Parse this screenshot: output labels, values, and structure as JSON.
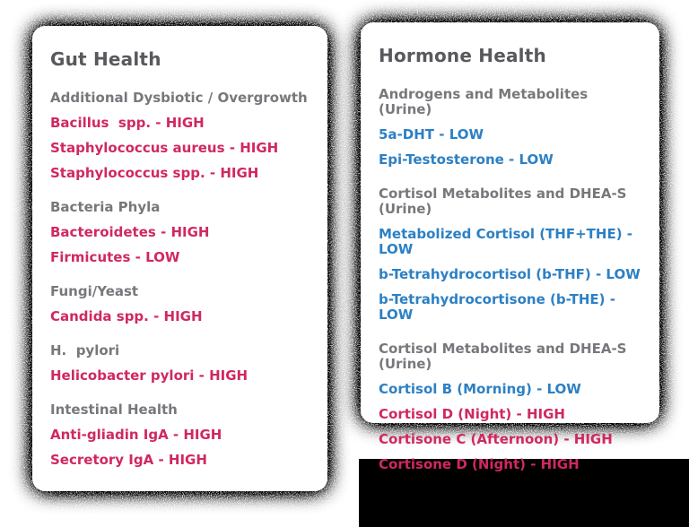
{
  "colors": {
    "result_high_red": "#d02862",
    "result_low_blue": "#2d80c4",
    "card_title": "#58595d",
    "section_header": "#77787c",
    "card_background": "#ffffff",
    "page_background": "#ffffff",
    "shadow_grain": "#000000",
    "bottom_right_region": "#000000"
  },
  "cards": [
    {
      "title": "Gut Health",
      "sections": [
        {
          "header": "Additional Dysbiotic / Overgrowth",
          "items": [
            {
              "label": "Bacillus  spp. - HIGH",
              "status": "HIGH",
              "color": "red"
            },
            {
              "label": "Staphylococcus aureus - HIGH",
              "status": "HIGH",
              "color": "red"
            },
            {
              "label": "Staphylococcus spp. - HIGH",
              "status": "HIGH",
              "color": "red"
            }
          ]
        },
        {
          "header": "Bacteria Phyla",
          "items": [
            {
              "label": "Bacteroidetes - HIGH",
              "status": "HIGH",
              "color": "red"
            },
            {
              "label": "Firmicutes - LOW",
              "status": "LOW",
              "color": "red"
            }
          ]
        },
        {
          "header": "Fungi/Yeast",
          "items": [
            {
              "label": "Candida spp. - HIGH",
              "status": "HIGH",
              "color": "red"
            }
          ]
        },
        {
          "header": "H.  pylori",
          "items": [
            {
              "label": "Helicobacter pylori - HIGH",
              "status": "HIGH",
              "color": "red"
            }
          ]
        },
        {
          "header": "Intestinal Health",
          "items": [
            {
              "label": "Anti-gliadin IgA - HIGH",
              "status": "HIGH",
              "color": "red"
            },
            {
              "label": "Secretory IgA - HIGH",
              "status": "HIGH",
              "color": "red"
            }
          ]
        }
      ]
    },
    {
      "title": "Hormone Health",
      "sections": [
        {
          "header": "Androgens and Metabolites (Urine)",
          "items": [
            {
              "label": "5a-DHT - LOW",
              "status": "LOW",
              "color": "blue"
            },
            {
              "label": "Epi-Testosterone - LOW",
              "status": "LOW",
              "color": "blue"
            }
          ]
        },
        {
          "header": "Cortisol Metabolites and DHEA-S (Urine)",
          "items": [
            {
              "label": "Metabolized Cortisol (THF+THE) - LOW",
              "status": "LOW",
              "color": "blue"
            },
            {
              "label": "b-Tetrahydrocortisol (b-THF) - LOW",
              "status": "LOW",
              "color": "blue"
            },
            {
              "label": "b-Tetrahydrocortisone (b-THE) - LOW",
              "status": "LOW",
              "color": "blue"
            }
          ]
        },
        {
          "header": "Cortisol Metabolites and DHEA-S (Urine)",
          "items": [
            {
              "label": "Cortisol B (Morning) - LOW",
              "status": "LOW",
              "color": "blue"
            },
            {
              "label": "Cortisol D (Night) - HIGH",
              "status": "HIGH",
              "color": "red"
            },
            {
              "label": "Cortisone C (Afternoon) - HIGH",
              "status": "HIGH",
              "color": "red"
            },
            {
              "label": "Cortisone D (Night) - HIGH",
              "status": "HIGH",
              "color": "red"
            }
          ]
        }
      ]
    }
  ]
}
